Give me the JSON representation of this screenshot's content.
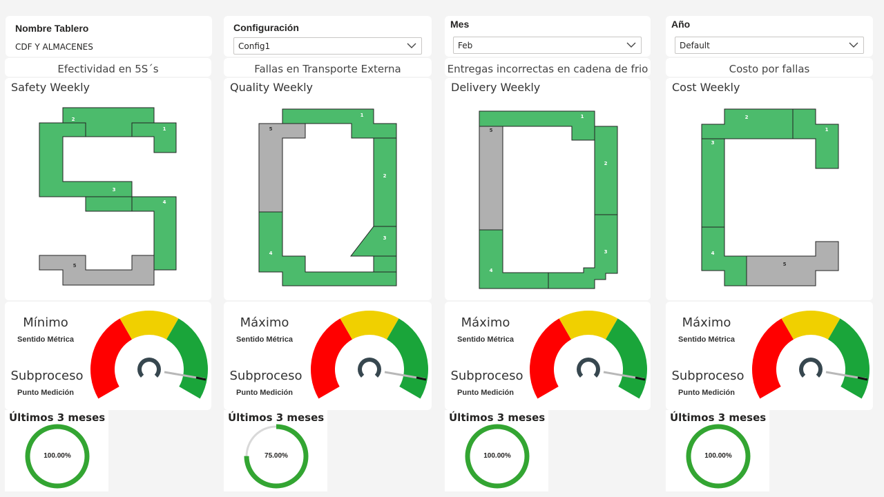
{
  "filters": {
    "tablero": {
      "title": "Nombre Tablero",
      "value": "CDF Y ALMACENES"
    },
    "configuracion": {
      "title": "Configuración",
      "value": "Config1"
    },
    "mes": {
      "title": "Mes",
      "value": "Feb"
    },
    "anio": {
      "title": "Año",
      "value": "Default"
    }
  },
  "icons": {
    "dropdown": "chevron-down-icon"
  },
  "colors": {
    "ok": "#4cbb6c",
    "pending": "#b0b0b0",
    "gauge_red": "#ff0000",
    "gauge_yellow": "#f0d000",
    "gauge_green": "#1aa53a",
    "donut_green": "#33a532",
    "donut_grey": "#d9d9d9"
  },
  "panels": [
    {
      "subtitle": "Efectividad en 5S´s",
      "weekly_title": "Safety Weekly",
      "letter": "S",
      "segments": [
        {
          "label": "1",
          "status": "ok"
        },
        {
          "label": "2",
          "status": "ok"
        },
        {
          "label": "3",
          "status": "ok"
        },
        {
          "label": "4",
          "status": "ok"
        },
        {
          "label": "5",
          "status": "pending"
        }
      ],
      "sentido_value": "Mínimo",
      "sentido_label": "Sentido Métrica",
      "subproceso_value": "Subproceso",
      "subproceso_label": "Punto Medición",
      "gauge_icon": "gauge-icon",
      "last_title": "Últimos 3 meses",
      "donut_value": 1.0,
      "donut_label": "100.00%"
    },
    {
      "subtitle": "Fallas en Transporte Externa",
      "weekly_title": "Quality Weekly",
      "letter": "Q",
      "segments": [
        {
          "label": "1",
          "status": "ok"
        },
        {
          "label": "2",
          "status": "ok"
        },
        {
          "label": "3",
          "status": "ok"
        },
        {
          "label": "4",
          "status": "ok"
        },
        {
          "label": "5",
          "status": "pending"
        }
      ],
      "sentido_value": "Máximo",
      "sentido_label": "Sentido Métrica",
      "subproceso_value": "Subproceso",
      "subproceso_label": "Punto Medición",
      "gauge_icon": "gauge-icon",
      "last_title": "Últimos 3 meses",
      "donut_value": 0.75,
      "donut_label": "75.00%"
    },
    {
      "subtitle": "Entregas incorrectas en cadena de frio",
      "weekly_title": "Delivery Weekly",
      "letter": "D",
      "segments": [
        {
          "label": "1",
          "status": "ok"
        },
        {
          "label": "2",
          "status": "ok"
        },
        {
          "label": "3",
          "status": "ok"
        },
        {
          "label": "4",
          "status": "ok"
        },
        {
          "label": "5",
          "status": "pending"
        }
      ],
      "sentido_value": "Máximo",
      "sentido_label": "Sentido Métrica",
      "subproceso_value": "Subproceso",
      "subproceso_label": "Punto Medición",
      "gauge_icon": "gauge-icon",
      "last_title": "Últimos 3 meses",
      "donut_value": 1.0,
      "donut_label": "100.00%"
    },
    {
      "subtitle": "Costo por fallas",
      "weekly_title": "Cost Weekly",
      "letter": "C",
      "segments": [
        {
          "label": "1",
          "status": "ok"
        },
        {
          "label": "2",
          "status": "ok"
        },
        {
          "label": "3",
          "status": "ok"
        },
        {
          "label": "4",
          "status": "ok"
        },
        {
          "label": "5",
          "status": "pending"
        }
      ],
      "sentido_value": "Máximo",
      "sentido_label": "Sentido Métrica",
      "subproceso_value": "Subproceso",
      "subproceso_label": "Punto Medición",
      "gauge_icon": "gauge-icon",
      "last_title": "Últimos 3 meses",
      "donut_value": 1.0,
      "donut_label": "100.00%"
    }
  ]
}
